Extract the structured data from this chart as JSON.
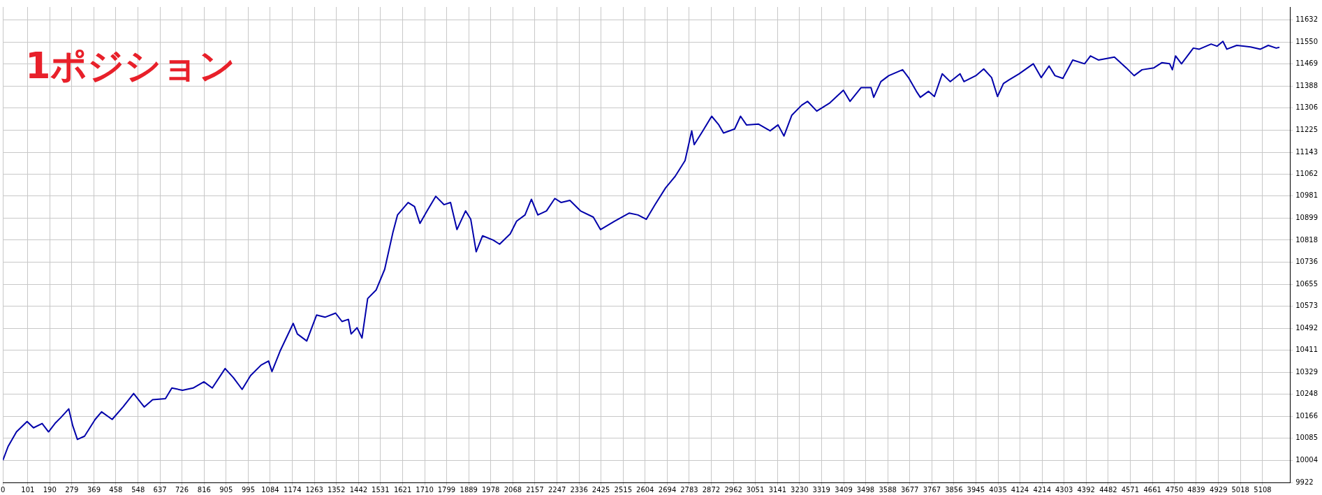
{
  "chart_data": {
    "type": "line",
    "annotations": [
      "1ポジション"
    ],
    "xlim": [
      0,
      5219
    ],
    "ylim": [
      9922,
      11680
    ],
    "xticks": [
      0,
      101,
      190,
      279,
      369,
      458,
      548,
      637,
      726,
      816,
      905,
      995,
      1084,
      1174,
      1263,
      1352,
      1442,
      1531,
      1621,
      1710,
      1799,
      1889,
      1978,
      2068,
      2157,
      2247,
      2336,
      2425,
      2515,
      2604,
      2694,
      2783,
      2872,
      2962,
      3051,
      3141,
      3230,
      3319,
      3409,
      3498,
      3588,
      3677,
      3767,
      3856,
      3945,
      4035,
      4124,
      4214,
      4303,
      4392,
      4482,
      4571,
      4661,
      4750,
      4839,
      4929,
      5018,
      5108
    ],
    "yticks": [
      9922,
      10004,
      10085,
      10166,
      10248,
      10329,
      10411,
      10492,
      10573,
      10655,
      10736,
      10818,
      10899,
      10981,
      11062,
      11143,
      11225,
      11306,
      11388,
      11469,
      11550,
      11632
    ],
    "grid": true,
    "legend": false,
    "marker": "none",
    "line_style": "solid",
    "x": [
      0,
      21,
      55,
      98,
      124,
      159,
      185,
      211,
      236,
      267,
      283,
      302,
      331,
      374,
      400,
      443,
      487,
      530,
      573,
      607,
      659,
      685,
      728,
      771,
      815,
      849,
      901,
      935,
      970,
      1004,
      1047,
      1077,
      1091,
      1125,
      1177,
      1194,
      1232,
      1272,
      1306,
      1349,
      1375,
      1401,
      1412,
      1436,
      1456,
      1479,
      1513,
      1548,
      1582,
      1600,
      1643,
      1669,
      1691,
      1720,
      1755,
      1789,
      1815,
      1841,
      1876,
      1897,
      1919,
      1945,
      1988,
      2014,
      2057,
      2083,
      2117,
      2143,
      2169,
      2204,
      2238,
      2264,
      2299,
      2342,
      2394,
      2423,
      2480,
      2540,
      2575,
      2609,
      2644,
      2687,
      2726,
      2766,
      2793,
      2803,
      2838,
      2874,
      2903,
      2922,
      2967,
      2991,
      3015,
      3063,
      3111,
      3143,
      3167,
      3199,
      3239,
      3263,
      3300,
      3351,
      3408,
      3435,
      3480,
      3520,
      3531,
      3560,
      3592,
      3648,
      3672,
      3704,
      3720,
      3753,
      3777,
      3809,
      3841,
      3881,
      3897,
      3945,
      3977,
      4009,
      4033,
      4057,
      4081,
      4121,
      4178,
      4210,
      4242,
      4266,
      4298,
      4338,
      4386,
      4410,
      4442,
      4507,
      4555,
      4587,
      4619,
      4667,
      4699,
      4731,
      4742,
      4755,
      4779,
      4827,
      4851,
      4899,
      4923,
      4947,
      4963,
      5003,
      5059,
      5099,
      5131,
      5163,
      5176
    ],
    "series": [
      {
        "color": "#0000aa",
        "values": [
          10004,
          10055,
          10109,
          10147,
          10124,
          10140,
          10109,
          10140,
          10163,
          10194,
          10132,
          10081,
          10093,
          10155,
          10183,
          10155,
          10201,
          10251,
          10201,
          10228,
          10232,
          10271,
          10263,
          10271,
          10294,
          10271,
          10343,
          10309,
          10266,
          10317,
          10356,
          10371,
          10332,
          10410,
          10510,
          10471,
          10445,
          10541,
          10533,
          10548,
          10517,
          10525,
          10471,
          10494,
          10456,
          10602,
          10633,
          10710,
          10849,
          10911,
          10957,
          10942,
          10880,
          10926,
          10980,
          10949,
          10957,
          10857,
          10926,
          10895,
          10775,
          10834,
          10818,
          10803,
          10841,
          10888,
          10911,
          10969,
          10911,
          10926,
          10972,
          10957,
          10965,
          10926,
          10903,
          10857,
          10888,
          10918,
          10911,
          10895,
          10949,
          11011,
          11054,
          11112,
          11222,
          11171,
          11222,
          11276,
          11244,
          11214,
          11229,
          11276,
          11244,
          11247,
          11222,
          11244,
          11203,
          11280,
          11317,
          11331,
          11295,
          11324,
          11372,
          11331,
          11382,
          11382,
          11346,
          11404,
          11426,
          11448,
          11419,
          11368,
          11346,
          11368,
          11349,
          11433,
          11404,
          11433,
          11404,
          11426,
          11451,
          11419,
          11349,
          11397,
          11411,
          11433,
          11470,
          11419,
          11462,
          11426,
          11416,
          11484,
          11470,
          11499,
          11484,
          11495,
          11455,
          11426,
          11448,
          11455,
          11474,
          11470,
          11448,
          11499,
          11470,
          11528,
          11524,
          11543,
          11535,
          11553,
          11524,
          11538,
          11532,
          11524,
          11538,
          11528,
          11531
        ]
      }
    ]
  }
}
